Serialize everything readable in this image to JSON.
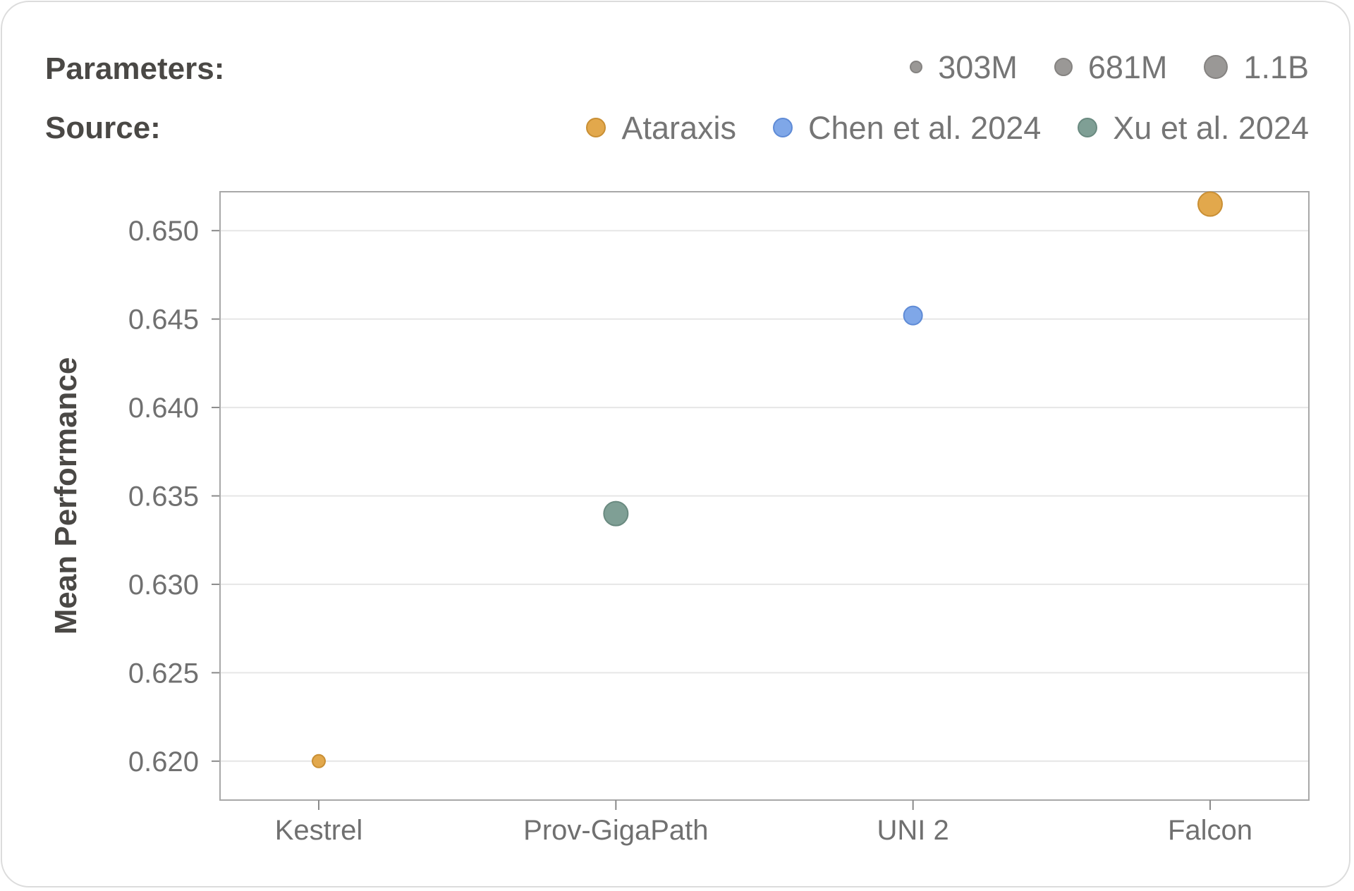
{
  "legend": {
    "parameters_title": "Parameters:",
    "source_title": "Source:",
    "sizes": [
      {
        "label": "303M",
        "params_millions": 303
      },
      {
        "label": "681M",
        "params_millions": 681
      },
      {
        "label": "1.1B",
        "params_millions": 1100
      }
    ],
    "sources": [
      {
        "label": "Ataraxis",
        "color": "#e2a84c"
      },
      {
        "label": "Chen et al. 2024",
        "color": "#7fa7e8"
      },
      {
        "label": "Xu et al. 2024",
        "color": "#7f9f95"
      }
    ]
  },
  "chart_data": {
    "type": "scatter",
    "title": "",
    "xlabel": "",
    "ylabel": "Mean Performance",
    "categories": [
      "Kestrel",
      "Prov-GigaPath",
      "UNI 2",
      "Falcon"
    ],
    "points": [
      {
        "model": "Kestrel",
        "y": 0.62,
        "source": "Ataraxis",
        "params": "303M"
      },
      {
        "model": "Prov-GigaPath",
        "y": 0.634,
        "source": "Xu et al. 2024",
        "params": "1.1B"
      },
      {
        "model": "UNI 2",
        "y": 0.6452,
        "source": "Chen et al. 2024",
        "params": "681M"
      },
      {
        "model": "Falcon",
        "y": 0.6515,
        "source": "Ataraxis",
        "params": "1.1B"
      }
    ],
    "yticks": [
      "0.620",
      "0.625",
      "0.630",
      "0.635",
      "0.640",
      "0.645",
      "0.650"
    ],
    "ylim": [
      0.6178,
      0.6522
    ],
    "grid": true,
    "legend_placement": "top"
  }
}
